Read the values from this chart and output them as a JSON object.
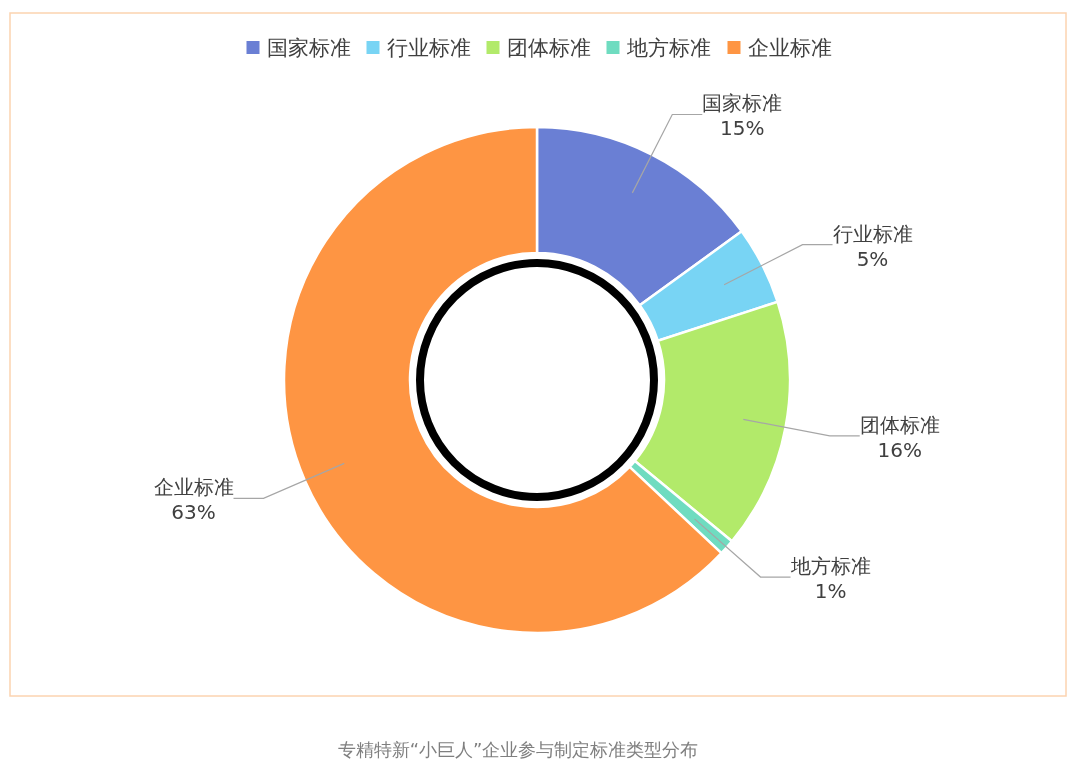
{
  "chart_data": {
    "type": "donut",
    "categories": [
      "国家标准",
      "行业标准",
      "团体标准",
      "地方标准",
      "企业标准"
    ],
    "values": [
      15,
      5,
      16,
      1,
      63
    ],
    "value_labels": [
      "15%",
      "5%",
      "16%",
      "1%",
      "63%"
    ],
    "colors": [
      "#6a7fd4",
      "#78d4f4",
      "#b2ea6a",
      "#6fdcc0",
      "#fe9543"
    ],
    "legend": "top",
    "annotations": [
      "专精特新“小巨人”企业参与制定标准类型分布"
    ]
  }
}
